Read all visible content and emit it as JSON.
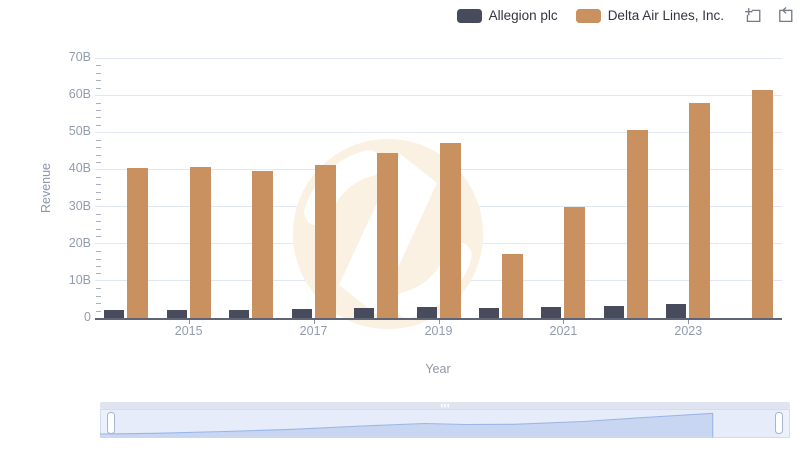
{
  "header": {
    "legend": [
      {
        "label": "Allegion plc",
        "color": "#474b5c"
      },
      {
        "label": "Delta Air Lines, Inc.",
        "color": "#c9915f"
      }
    ],
    "toolbox": [
      {
        "name": "box-zoom-icon"
      },
      {
        "name": "zoom-reset-icon"
      }
    ]
  },
  "chart_data": {
    "type": "bar",
    "title": "",
    "xlabel": "Year",
    "ylabel": "Revenue",
    "unit": "B = billions USD",
    "ylim": [
      0,
      70
    ],
    "y_tick_labels": [
      "0",
      "10B",
      "20B",
      "30B",
      "40B",
      "50B",
      "60B",
      "70B"
    ],
    "y_major_step": 10,
    "y_minor_step": 2,
    "grid": true,
    "legend_position": "top-right",
    "categories": [
      2014,
      2015,
      2016,
      2017,
      2018,
      2019,
      2020,
      2021,
      2022,
      2023,
      2024
    ],
    "x_tick_labels": [
      "2015",
      "2017",
      "2019",
      "2021",
      "2023"
    ],
    "series": [
      {
        "name": "Allegion plc",
        "color": "#474b5c",
        "values": [
          2.1,
          2.1,
          2.2,
          2.4,
          2.7,
          2.9,
          2.7,
          2.9,
          3.3,
          3.7,
          null
        ]
      },
      {
        "name": "Delta Air Lines, Inc.",
        "color": "#c9915f",
        "values": [
          40.4,
          40.7,
          39.6,
          41.2,
          44.4,
          47.0,
          17.1,
          29.9,
          50.6,
          58.0,
          61.5
        ]
      }
    ],
    "navigator": {
      "selection": [
        0,
        1
      ],
      "shadow_points": [
        [
          0,
          0.14
        ],
        [
          0.08,
          0.17
        ],
        [
          0.18,
          0.24
        ],
        [
          0.28,
          0.33
        ],
        [
          0.38,
          0.46
        ],
        [
          0.47,
          0.56
        ],
        [
          0.53,
          0.52
        ],
        [
          0.6,
          0.53
        ],
        [
          0.7,
          0.64
        ],
        [
          0.8,
          0.82
        ],
        [
          0.888,
          0.97
        ]
      ]
    }
  },
  "colors": {
    "gridline": "#e2e8f3",
    "axis_line": "#5f6575",
    "tick_label": "#929cae",
    "watermark_circle": "#faf1e2",
    "nav_track_bg": "#edf1fb",
    "nav_track_border": "#d2dbef",
    "nav_area_fill": "#c3d5f3",
    "nav_line": "#9cb7e5",
    "nav_move_strip": "#e0e4f0",
    "nav_handle_border": "#a9b6d2"
  }
}
